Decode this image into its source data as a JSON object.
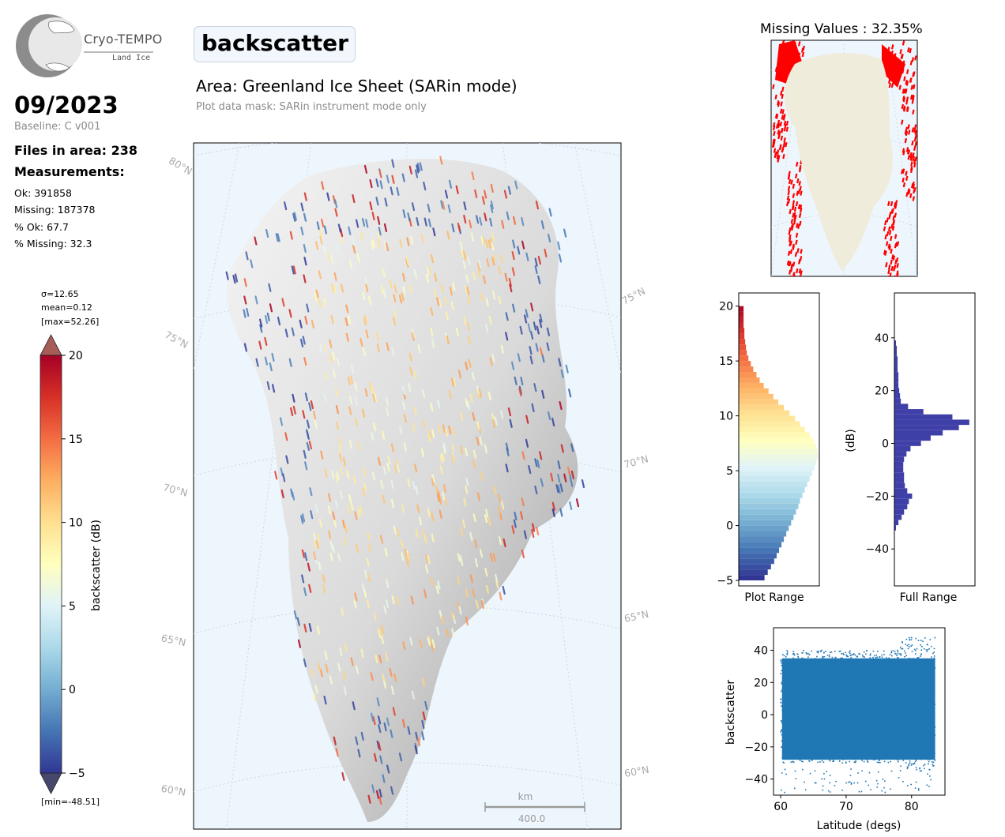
{
  "logo": {
    "brand": "Cryo-TEMPO",
    "sub": "Land Ice"
  },
  "summary": {
    "month": "09/2023",
    "baseline": "Baseline: C v001",
    "files_in_area": "Files in area: 238",
    "measurements_title": "Measurements:",
    "ok": "Ok: 391858",
    "missing": "Missing: 187378",
    "pct_ok": "% Ok: 67.7",
    "pct_missing": "% Missing: 32.3"
  },
  "parameter": "backscatter",
  "area_title": "Area: Greenland Ice Sheet (SARin mode)",
  "mask_note": "Plot data mask: SARin instrument mode only",
  "colorbar": {
    "label": "backscatter (dB)",
    "min": -5,
    "max": 20,
    "ticks": [
      "20",
      "15",
      "10",
      "5",
      "0",
      "−5"
    ],
    "tick_values": [
      20,
      15,
      10,
      5,
      0,
      -5
    ],
    "sigma": "σ=12.65",
    "mean": "mean=0.12",
    "max_label": "[max=52.26]",
    "min_label": "[min=-48.51]",
    "colors": [
      "#313695",
      "#4575b4",
      "#74add1",
      "#abd9e9",
      "#e0f3f8",
      "#ffffbf",
      "#fee090",
      "#fdae61",
      "#f46d43",
      "#d73027",
      "#a50026"
    ]
  },
  "main_map": {
    "lat_labels_left": [
      "80°N",
      "75°N",
      "70°N",
      "65°N",
      "60°N"
    ],
    "lat_labels_right": [
      "75°N",
      "70°N",
      "65°N",
      "60°N"
    ],
    "scale_unit": "km",
    "scale_value": "400.0",
    "ocean_color": "#eef6fd"
  },
  "missing_map": {
    "title": "Missing Values : 32.35%",
    "land_color": "#efecdc",
    "missing_color": "#ff0000"
  },
  "hist_plot_range": {
    "xlabel": "Plot Range",
    "ticks": [
      "20",
      "15",
      "10",
      "5",
      "0",
      "−5"
    ],
    "tick_values": [
      20,
      15,
      10,
      5,
      0,
      -5
    ],
    "ylim": [
      -5.5,
      21.2
    ],
    "bins": [
      [
        -5,
        0.32
      ],
      [
        -4.5,
        0.36
      ],
      [
        -4,
        0.4
      ],
      [
        -3.5,
        0.44
      ],
      [
        -3,
        0.47
      ],
      [
        -2.5,
        0.5
      ],
      [
        -2,
        0.53
      ],
      [
        -1.5,
        0.56
      ],
      [
        -1,
        0.59
      ],
      [
        -0.5,
        0.62
      ],
      [
        0,
        0.65
      ],
      [
        0.5,
        0.68
      ],
      [
        1,
        0.71
      ],
      [
        1.5,
        0.74
      ],
      [
        2,
        0.76
      ],
      [
        2.5,
        0.79
      ],
      [
        3,
        0.82
      ],
      [
        3.5,
        0.85
      ],
      [
        4,
        0.88
      ],
      [
        4.5,
        0.91
      ],
      [
        5,
        0.94
      ],
      [
        5.5,
        0.96
      ],
      [
        6,
        0.98
      ],
      [
        6.5,
        0.98
      ],
      [
        7,
        0.96
      ],
      [
        7.5,
        0.93
      ],
      [
        8,
        0.88
      ],
      [
        8.5,
        0.82
      ],
      [
        9,
        0.76
      ],
      [
        9.5,
        0.7
      ],
      [
        10,
        0.63
      ],
      [
        10.5,
        0.56
      ],
      [
        11,
        0.49
      ],
      [
        11.5,
        0.43
      ],
      [
        12,
        0.37
      ],
      [
        12.5,
        0.31
      ],
      [
        13,
        0.26
      ],
      [
        13.5,
        0.22
      ],
      [
        14,
        0.18
      ],
      [
        14.5,
        0.15
      ],
      [
        15,
        0.12
      ],
      [
        15.5,
        0.1
      ],
      [
        16,
        0.09
      ],
      [
        16.5,
        0.08
      ],
      [
        17,
        0.07
      ],
      [
        17.5,
        0.07
      ],
      [
        18,
        0.06
      ],
      [
        18.5,
        0.06
      ],
      [
        19,
        0.06
      ],
      [
        19.5,
        0.06
      ]
    ]
  },
  "hist_full_range": {
    "xlabel": "Full Range",
    "ylabel": "(dB)",
    "ticks": [
      "40",
      "20",
      "0",
      "−20",
      "−40"
    ],
    "tick_values": [
      40,
      20,
      0,
      -20,
      -40
    ],
    "ylim": [
      -54,
      57
    ],
    "bar_color": "#3f3fa8",
    "bins": [
      [
        -33,
        0.02
      ],
      [
        -31,
        0.05
      ],
      [
        -29,
        0.09
      ],
      [
        -27,
        0.12
      ],
      [
        -25,
        0.16
      ],
      [
        -23,
        0.18
      ],
      [
        -21,
        0.22
      ],
      [
        -19,
        0.16
      ],
      [
        -17,
        0.13
      ],
      [
        -15,
        0.12
      ],
      [
        -13,
        0.12
      ],
      [
        -11,
        0.11
      ],
      [
        -9,
        0.11
      ],
      [
        -7,
        0.12
      ],
      [
        -5,
        0.15
      ],
      [
        -3,
        0.2
      ],
      [
        -1,
        0.33
      ],
      [
        1,
        0.45
      ],
      [
        3,
        0.6
      ],
      [
        5,
        0.8
      ],
      [
        7,
        0.93
      ],
      [
        9,
        0.72
      ],
      [
        11,
        0.36
      ],
      [
        13,
        0.17
      ],
      [
        15,
        0.08
      ],
      [
        17,
        0.07
      ],
      [
        19,
        0.06
      ],
      [
        21,
        0.05
      ],
      [
        23,
        0.05
      ],
      [
        25,
        0.05
      ],
      [
        27,
        0.04
      ],
      [
        29,
        0.04
      ],
      [
        31,
        0.04
      ],
      [
        33,
        0.03
      ],
      [
        35,
        0.03
      ],
      [
        37,
        0.02
      ]
    ]
  },
  "scatter": {
    "xlabel": "Latitude (degs)",
    "ylabel": "backscatter",
    "xticks": [
      "60",
      "70",
      "80"
    ],
    "xtick_values": [
      60,
      70,
      80
    ],
    "yticks": [
      "40",
      "20",
      "0",
      "−20",
      "−40"
    ],
    "ytick_values": [
      40,
      20,
      0,
      -20,
      -40
    ],
    "xlim": [
      58.9,
      85.1
    ],
    "ylim": [
      -50,
      54
    ],
    "color": "#1f77b4",
    "range": {
      "lat_min": 60,
      "lat_max": 83.6,
      "val_min": -48.5,
      "val_max": 52.3
    }
  },
  "chart_data": [
    {
      "type": "bar",
      "xlabel": "Plot Range",
      "ylim": [
        -5.5,
        21.2
      ],
      "note_bins": "value_dB, relative_count",
      "categories": [],
      "values": []
    },
    {
      "type": "bar",
      "xlabel": "Full Range",
      "ylabel": "(dB)",
      "ylim": [
        -54,
        57
      ]
    },
    {
      "type": "scatter",
      "xlabel": "Latitude (degs)",
      "ylabel": "backscatter",
      "xlim": [
        58.9,
        85.1
      ],
      "ylim": [
        -50,
        54
      ]
    }
  ]
}
